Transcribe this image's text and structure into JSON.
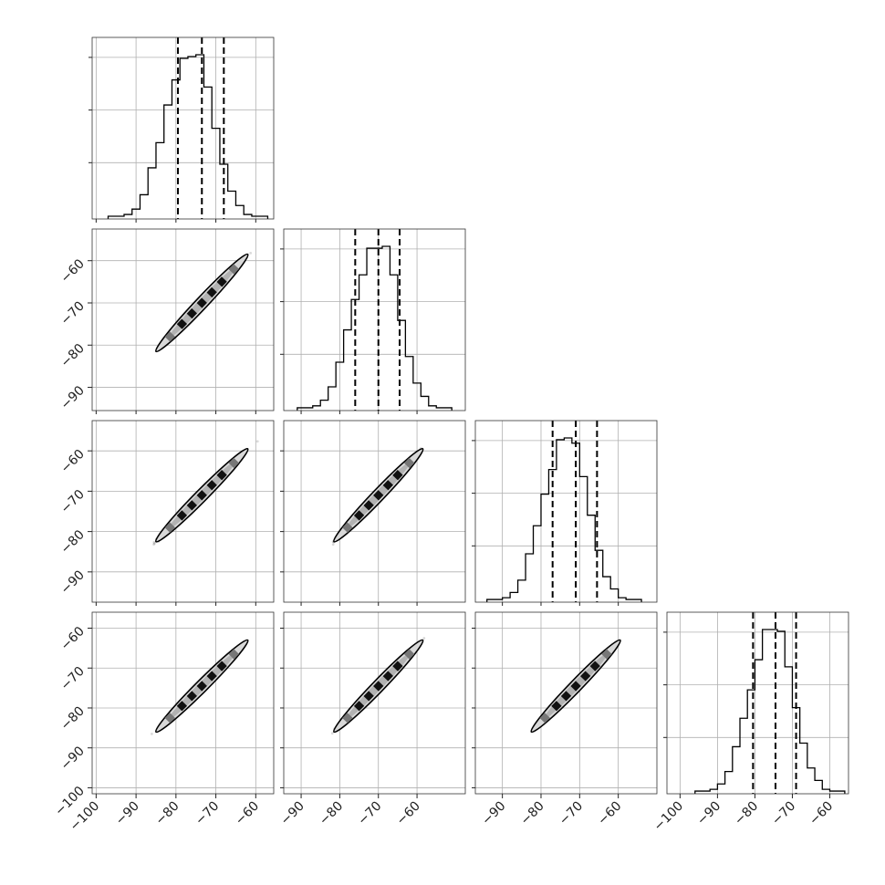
{
  "chart_data": {
    "type": "corner",
    "n_params": 4,
    "x_ticks": {
      "col0": [
        "−100",
        "−90",
        "−80",
        "−70",
        "−60"
      ],
      "col1": [
        "−90",
        "−80",
        "−70",
        "−60"
      ],
      "col2": [
        "−90",
        "−80",
        "−70",
        "−60"
      ],
      "col3": [
        "−100",
        "−90",
        "−80",
        "−70",
        "−60"
      ]
    },
    "y_ticks": {
      "row1": [
        "−60",
        "−70",
        "−80",
        "−90"
      ],
      "row2": [
        "−60",
        "−70",
        "−80",
        "−90"
      ],
      "row3": [
        "−60",
        "−70",
        "−80",
        "−90",
        "−100"
      ]
    },
    "x_tick_values": {
      "col0": [
        -100,
        -90,
        -80,
        -70,
        -60
      ],
      "col1": [
        -90,
        -80,
        -70,
        -60
      ],
      "col2": [
        -90,
        -80,
        -70,
        -60
      ],
      "col3": [
        -100,
        -90,
        -80,
        -70,
        -60
      ]
    },
    "y_tick_values": {
      "row1": [
        -60,
        -70,
        -80,
        -90
      ],
      "row2": [
        -60,
        -70,
        -80,
        -90
      ],
      "row3": [
        -60,
        -70,
        -80,
        -90,
        -100
      ]
    },
    "x_ranges": [
      [
        -101,
        -55.5
      ],
      [
        -94.5,
        -47.5
      ],
      [
        -97,
        -50
      ],
      [
        -103.5,
        -55
      ]
    ],
    "y_ranges": {
      "row1": [
        -95.5,
        -52.5
      ],
      "row2": [
        -97.5,
        -52.5
      ],
      "row3": [
        -101.5,
        -56
      ]
    },
    "histograms": [
      {
        "param": 0,
        "bin_edges": [
          -97,
          -95,
          -93,
          -91,
          -89,
          -87,
          -85,
          -83,
          -81,
          -79,
          -77,
          -75,
          -73,
          -71,
          -69,
          -67,
          -65,
          -63,
          -61,
          -59,
          -57
        ],
        "counts": [
          1,
          1,
          2,
          5,
          13,
          28,
          42,
          63,
          77,
          89,
          90,
          91,
          73,
          50,
          30,
          15,
          7,
          2,
          1,
          1
        ],
        "quantiles": [
          -79.5,
          -73.5,
          -68
        ]
      },
      {
        "param": 1,
        "bin_edges": [
          -91,
          -89,
          -87,
          -85,
          -83,
          -81,
          -79,
          -77,
          -75,
          -73,
          -71,
          -69,
          -67,
          -65,
          -63,
          -61,
          -59,
          -57,
          -55,
          -53,
          -51
        ],
        "counts": [
          1,
          1,
          2,
          5,
          12,
          25,
          42,
          58,
          71,
          85,
          85,
          86,
          71,
          47,
          28,
          14,
          7,
          2,
          1,
          1
        ],
        "quantiles": [
          -76,
          -70,
          -64.5
        ]
      },
      {
        "param": 2,
        "bin_edges": [
          -94,
          -92,
          -90,
          -88,
          -86,
          -84,
          -82,
          -80,
          -78,
          -76,
          -74,
          -72,
          -70,
          -68,
          -66,
          -64,
          -62,
          -60,
          -58,
          -56,
          -54
        ],
        "counts": [
          1,
          1,
          2,
          5,
          12,
          27,
          43,
          61,
          75,
          92,
          93,
          90,
          71,
          49,
          29,
          14,
          7,
          2,
          1,
          1
        ],
        "quantiles": [
          -77,
          -71,
          -65.5
        ]
      },
      {
        "param": 3,
        "bin_edges": [
          -96,
          -94,
          -92,
          -90,
          -88,
          -86,
          -84,
          -82,
          -80,
          -78,
          -76,
          -74,
          -72,
          -70,
          -68,
          -66,
          -64,
          -62,
          -60,
          -58,
          -56
        ],
        "counts": [
          1,
          1,
          2,
          5,
          12,
          26,
          42,
          58,
          75,
          92,
          92,
          91,
          71,
          48,
          28,
          14,
          7,
          2,
          1,
          1
        ],
        "quantiles": [
          -80.5,
          -74.5,
          -69
        ]
      }
    ],
    "scatter_panels": [
      {
        "row": 1,
        "col": 0,
        "x_mean": -73.5,
        "y_mean": -70,
        "slope": 1.0,
        "x_extent": [
          -99,
          -57
        ]
      },
      {
        "row": 2,
        "col": 0,
        "x_mean": -73.5,
        "y_mean": -71,
        "slope": 1.0,
        "x_extent": [
          -99,
          -57
        ]
      },
      {
        "row": 2,
        "col": 1,
        "x_mean": -70,
        "y_mean": -71,
        "slope": 1.0,
        "x_extent": [
          -93,
          -50
        ]
      },
      {
        "row": 3,
        "col": 0,
        "x_mean": -73.5,
        "y_mean": -74.5,
        "slope": 1.0,
        "x_extent": [
          -99,
          -57
        ]
      },
      {
        "row": 3,
        "col": 1,
        "x_mean": -70,
        "y_mean": -74.5,
        "slope": 1.0,
        "x_extent": [
          -93,
          -50
        ]
      },
      {
        "row": 3,
        "col": 2,
        "x_mean": -71,
        "y_mean": -74.5,
        "slope": 1.0,
        "x_extent": [
          -95,
          -52
        ]
      }
    ],
    "grid": true,
    "colors": {
      "line": "#000000",
      "grid": "#b0b0b0",
      "points": "#555555"
    }
  }
}
